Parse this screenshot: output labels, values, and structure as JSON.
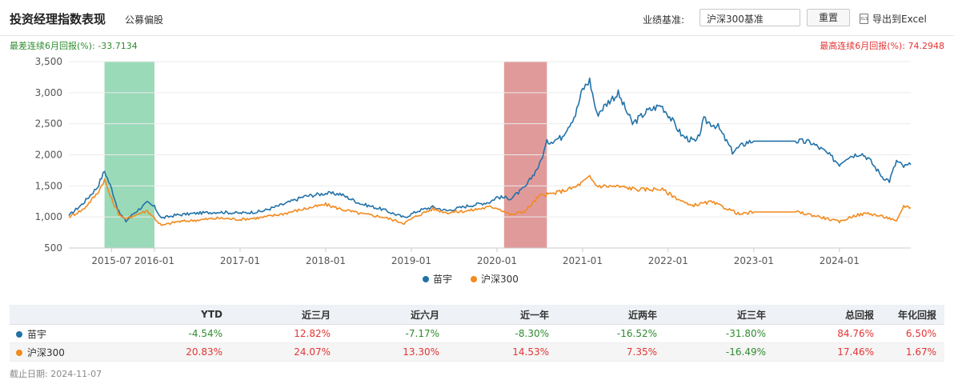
{
  "header": {
    "title": "投资经理指数表现",
    "subtitle": "公募偏股",
    "benchmark_label": "业绩基准:",
    "benchmark_value": "沪深300基准",
    "reset_label": "重置",
    "export_label": "导出到Excel",
    "export_icon": "xls-file-icon"
  },
  "stats": {
    "worst": "最差连续6月回报(%): -33.7134",
    "best": "最高连续6月回报(%): 74.2948"
  },
  "colors": {
    "series1": "#2272a8",
    "series2": "#f28a1e",
    "worst_band": "#8fd6b0",
    "best_band": "#de8f8f",
    "positive": "#e53333",
    "negative": "#2e8b2e"
  },
  "chart_data": {
    "type": "line",
    "y_ticks": [
      "3,500",
      "3,000",
      "2,500",
      "2,000",
      "1,500",
      "1,000",
      "500"
    ],
    "ylim": [
      500,
      3500
    ],
    "x_ticks": [
      "2015-07",
      "2016-01",
      "2017-01",
      "2018-01",
      "2019-01",
      "2020-01",
      "2021-01",
      "2022-01",
      "2023-01",
      "2024-01"
    ],
    "x_tick_dates": [
      "2015-07",
      "2016-01",
      "2017-01",
      "2018-01",
      "2019-01",
      "2020-01",
      "2021-01",
      "2022-01",
      "2023-01",
      "2024-01"
    ],
    "x_range": [
      "2015-01",
      "2024-11"
    ],
    "highlight_worst": [
      "2015-06",
      "2016-01"
    ],
    "highlight_best": [
      "2020-02",
      "2020-08"
    ],
    "series": [
      {
        "name": "苗宇",
        "points": [
          [
            "2015-01",
            1020
          ],
          [
            "2015-03",
            1220
          ],
          [
            "2015-05",
            1480
          ],
          [
            "2015-06",
            1740
          ],
          [
            "2015-07",
            1450
          ],
          [
            "2015-08",
            1080
          ],
          [
            "2015-09",
            930
          ],
          [
            "2015-10",
            1050
          ],
          [
            "2015-12",
            1230
          ],
          [
            "2016-01",
            1160
          ],
          [
            "2016-02",
            980
          ],
          [
            "2016-04",
            1030
          ],
          [
            "2016-07",
            1060
          ],
          [
            "2016-10",
            1080
          ],
          [
            "2017-01",
            1060
          ],
          [
            "2017-04",
            1090
          ],
          [
            "2017-07",
            1200
          ],
          [
            "2017-10",
            1330
          ],
          [
            "2018-01",
            1380
          ],
          [
            "2018-03",
            1370
          ],
          [
            "2018-06",
            1210
          ],
          [
            "2018-09",
            1120
          ],
          [
            "2018-12",
            990
          ],
          [
            "2019-02",
            1100
          ],
          [
            "2019-04",
            1160
          ],
          [
            "2019-06",
            1100
          ],
          [
            "2019-09",
            1180
          ],
          [
            "2019-12",
            1240
          ],
          [
            "2020-01",
            1320
          ],
          [
            "2020-03",
            1300
          ],
          [
            "2020-05",
            1480
          ],
          [
            "2020-07",
            1850
          ],
          [
            "2020-08",
            2200
          ],
          [
            "2020-10",
            2280
          ],
          [
            "2020-12",
            2650
          ],
          [
            "2021-01",
            3050
          ],
          [
            "2021-02",
            3200
          ],
          [
            "2021-03",
            2650
          ],
          [
            "2021-05",
            2900
          ],
          [
            "2021-06",
            2980
          ],
          [
            "2021-08",
            2500
          ],
          [
            "2021-10",
            2700
          ],
          [
            "2021-12",
            2800
          ],
          [
            "2022-01",
            2650
          ],
          [
            "2022-03",
            2300
          ],
          [
            "2022-05",
            2200
          ],
          [
            "2022-06",
            2560
          ],
          [
            "2022-08",
            2450
          ],
          [
            "2022-10",
            2050
          ],
          [
            "2022-12",
            2200
          ],
          [
            "2023-01",
            2220
          ],
          [
            "2023-07",
            2220
          ],
          [
            "2023-09",
            2200
          ],
          [
            "2023-11",
            2050
          ],
          [
            "2024-01",
            1850
          ],
          [
            "2024-02",
            1960
          ],
          [
            "2024-04",
            2030
          ],
          [
            "2024-05",
            1950
          ],
          [
            "2024-07",
            1650
          ],
          [
            "2024-08",
            1580
          ],
          [
            "2024-09",
            1900
          ],
          [
            "2024-10",
            1810
          ],
          [
            "2024-11",
            1840
          ]
        ]
      },
      {
        "name": "沪深300",
        "points": [
          [
            "2015-01",
            1000
          ],
          [
            "2015-03",
            1120
          ],
          [
            "2015-05",
            1380
          ],
          [
            "2015-06",
            1600
          ],
          [
            "2015-07",
            1280
          ],
          [
            "2015-08",
            1050
          ],
          [
            "2015-09",
            960
          ],
          [
            "2015-10",
            1020
          ],
          [
            "2015-12",
            1100
          ],
          [
            "2016-01",
            980
          ],
          [
            "2016-02",
            860
          ],
          [
            "2016-04",
            920
          ],
          [
            "2016-07",
            950
          ],
          [
            "2016-10",
            980
          ],
          [
            "2017-01",
            960
          ],
          [
            "2017-04",
            990
          ],
          [
            "2017-07",
            1050
          ],
          [
            "2017-10",
            1130
          ],
          [
            "2018-01",
            1200
          ],
          [
            "2018-03",
            1130
          ],
          [
            "2018-06",
            1050
          ],
          [
            "2018-09",
            1000
          ],
          [
            "2018-12",
            900
          ],
          [
            "2019-02",
            1030
          ],
          [
            "2019-04",
            1130
          ],
          [
            "2019-06",
            1070
          ],
          [
            "2019-09",
            1100
          ],
          [
            "2019-12",
            1160
          ],
          [
            "2020-01",
            1150
          ],
          [
            "2020-03",
            1030
          ],
          [
            "2020-05",
            1100
          ],
          [
            "2020-07",
            1340
          ],
          [
            "2020-09",
            1380
          ],
          [
            "2020-12",
            1480
          ],
          [
            "2021-02",
            1640
          ],
          [
            "2021-03",
            1500
          ],
          [
            "2021-06",
            1490
          ],
          [
            "2021-09",
            1440
          ],
          [
            "2021-12",
            1450
          ],
          [
            "2022-03",
            1250
          ],
          [
            "2022-04",
            1180
          ],
          [
            "2022-07",
            1240
          ],
          [
            "2022-10",
            1100
          ],
          [
            "2022-11",
            1040
          ],
          [
            "2023-01",
            1080
          ],
          [
            "2023-07",
            1080
          ],
          [
            "2023-10",
            1010
          ],
          [
            "2024-01",
            920
          ],
          [
            "2024-03",
            1020
          ],
          [
            "2024-05",
            1060
          ],
          [
            "2024-08",
            980
          ],
          [
            "2024-09",
            920
          ],
          [
            "2024-10",
            1180
          ],
          [
            "2024-11",
            1150
          ]
        ]
      }
    ]
  },
  "legend": {
    "s1": "苗宇",
    "s2": "沪深300"
  },
  "table": {
    "headers": [
      "",
      "YTD",
      "近三月",
      "近六月",
      "近一年",
      "近两年",
      "近三年",
      "总回报",
      "年化回报"
    ],
    "rows": [
      {
        "name": "苗宇",
        "values": [
          "-4.54%",
          "12.82%",
          "-7.17%",
          "-8.30%",
          "-16.52%",
          "-31.80%",
          "84.76%",
          "6.50%"
        ]
      },
      {
        "name": "沪深300",
        "values": [
          "20.83%",
          "24.07%",
          "13.30%",
          "14.53%",
          "7.35%",
          "-16.49%",
          "17.46%",
          "1.67%"
        ]
      }
    ]
  },
  "footnote": "截止日期: 2024-11-07"
}
